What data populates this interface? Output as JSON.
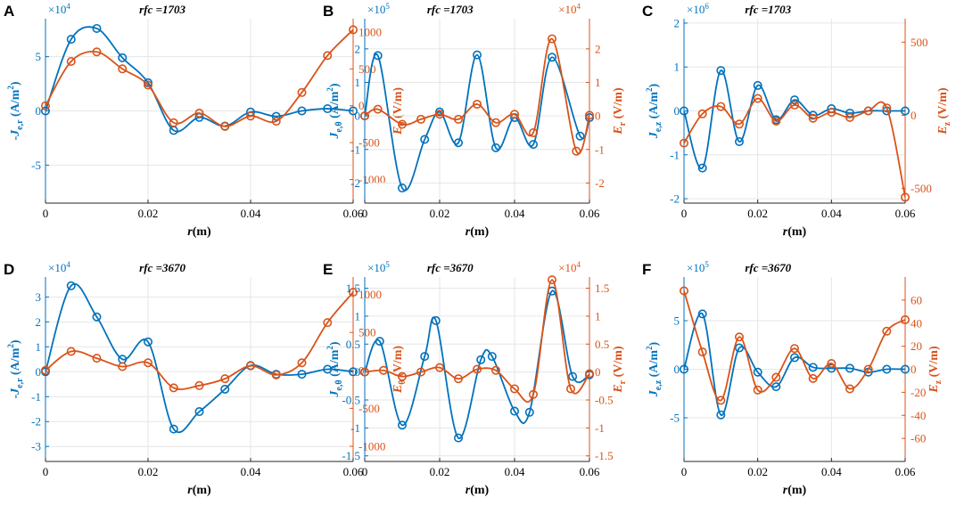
{
  "figure": {
    "colors": {
      "left": "#0072BD",
      "right": "#D95319",
      "grid": "#e6e6e6",
      "axis": "#262626"
    }
  },
  "chart_data": [
    {
      "panel": "A",
      "type": "line",
      "title": "rfc =1703",
      "xlabel": {
        "main": "r",
        "unit": "(m)"
      },
      "ylabel_left": {
        "prefix": "-",
        "main": "J",
        "sub": "e,r",
        "unit": " (A/m",
        "sup": "2",
        "close": ")"
      },
      "ylabel_right": {
        "main": "E",
        "sub": "θ",
        "unit": " (V/m)"
      },
      "xlim": [
        0,
        0.06
      ],
      "xticks": [
        0,
        0.02,
        0.04,
        0.06
      ],
      "xtick_labels": [
        "0",
        "0.02",
        "0.04",
        "0.06"
      ],
      "ylim_left": [
        -8.5,
        8.5
      ],
      "yticks_left": [
        -5,
        0,
        5
      ],
      "ytick_labels_left": [
        "-5",
        "0",
        "5"
      ],
      "multiplier_left": {
        "base": "×10",
        "exp": "4"
      },
      "ylim_right": [
        -1320,
        1180
      ],
      "yticks_right": [
        -1000,
        -500,
        0,
        500,
        1000
      ],
      "ytick_labels_right": [
        "-1000",
        "-500",
        "0",
        "500",
        "1000"
      ],
      "multiplier_right": null,
      "series_left": {
        "name": "-J_e,r",
        "x": [
          0,
          0.005,
          0.01,
          0.015,
          0.02,
          0.025,
          0.03,
          0.035,
          0.04,
          0.045,
          0.05,
          0.055,
          0.06
        ],
        "y": [
          0,
          6.6,
          7.6,
          4.9,
          2.6,
          -1.8,
          -0.6,
          -1.4,
          -0.1,
          -0.5,
          0,
          0.2,
          0
        ]
      },
      "series_right": {
        "name": "E_θ",
        "x": [
          0,
          0.005,
          0.01,
          0.015,
          0.02,
          0.025,
          0.03,
          0.035,
          0.04,
          0.045,
          0.05,
          0.055,
          0.06
        ],
        "y": [
          0,
          600,
          730,
          500,
          280,
          -230,
          -100,
          -280,
          -140,
          -210,
          180,
          680,
          1030
        ]
      }
    },
    {
      "panel": "B",
      "type": "line",
      "title": "rfc =1703",
      "xlabel": {
        "main": "r",
        "unit": "(m)"
      },
      "ylabel_left": {
        "prefix": "",
        "main": "J",
        "sub": "e,θ",
        "unit": " (A/m",
        "sup": "2",
        "close": ")"
      },
      "ylabel_right": {
        "main": "E",
        "sub": "r",
        "unit": " (V/m)"
      },
      "xlim": [
        0,
        0.06
      ],
      "xticks": [
        0,
        0.02,
        0.04,
        0.06
      ],
      "xtick_labels": [
        "0",
        "0.02",
        "0.04",
        "0.06"
      ],
      "ylim_left": [
        -2.6,
        2.9
      ],
      "yticks_left": [
        -2,
        -1,
        0,
        1,
        2
      ],
      "ytick_labels_left": [
        "-2",
        "-1",
        "0",
        "1",
        "2"
      ],
      "multiplier_left": {
        "base": "×10",
        "exp": "5"
      },
      "ylim_right": [
        -2.6,
        2.9
      ],
      "yticks_right": [
        -2,
        -1,
        0,
        1,
        2
      ],
      "ytick_labels_right": [
        "-2",
        "-1",
        "0",
        "1",
        "2"
      ],
      "multiplier_right": {
        "base": "×10",
        "exp": "4"
      },
      "series_left": {
        "name": "J_e,θ",
        "x": [
          0,
          0.0035,
          0.01,
          0.016,
          0.02,
          0.025,
          0.03,
          0.035,
          0.04,
          0.045,
          0.05,
          0.0575,
          0.06
        ],
        "y": [
          0,
          1.8,
          -2.15,
          -0.7,
          0.12,
          -0.8,
          1.82,
          -0.95,
          -0.05,
          -0.85,
          1.75,
          -0.6,
          -0.05
        ]
      },
      "series_right": {
        "name": "E_r",
        "x": [
          0,
          0.0035,
          0.01,
          0.015,
          0.02,
          0.025,
          0.03,
          0.035,
          0.04,
          0.045,
          0.05,
          0.0565,
          0.06
        ],
        "y": [
          0,
          0.2,
          -0.25,
          -0.1,
          0.05,
          -0.1,
          0.35,
          -0.2,
          0.05,
          -0.5,
          2.3,
          -1.05,
          0.02
        ]
      }
    },
    {
      "panel": "C",
      "type": "line",
      "title": "rfc =1703",
      "xlabel": {
        "main": "r",
        "unit": "(m)"
      },
      "ylabel_left": {
        "prefix": "",
        "main": "J",
        "sub": "e,z",
        "unit": " (A/m",
        "sup": "2",
        "close": ")"
      },
      "ylabel_right": {
        "main": "E",
        "sub": "z",
        "unit": " (V/m)"
      },
      "xlim": [
        0,
        0.06
      ],
      "xticks": [
        0,
        0.02,
        0.04,
        0.06
      ],
      "xtick_labels": [
        "0",
        "0.02",
        "0.04",
        "0.06"
      ],
      "ylim_left": [
        -2.1,
        2.1
      ],
      "yticks_left": [
        -2,
        -1,
        0,
        1,
        2
      ],
      "ytick_labels_left": [
        "-2",
        "-1",
        "0",
        "1",
        "2"
      ],
      "multiplier_left": {
        "base": "×10",
        "exp": "6"
      },
      "ylim_right": [
        -600,
        660
      ],
      "yticks_right": [
        -500,
        0,
        500
      ],
      "ytick_labels_right": [
        "-500",
        "0",
        "500"
      ],
      "multiplier_right": null,
      "series_left": {
        "name": "J_e,z",
        "x": [
          0,
          0.005,
          0.01,
          0.015,
          0.02,
          0.025,
          0.03,
          0.035,
          0.04,
          0.045,
          0.05,
          0.055,
          0.06
        ],
        "y": [
          0,
          -1.3,
          0.92,
          -0.7,
          0.58,
          -0.2,
          0.25,
          -0.1,
          0.05,
          -0.05,
          0,
          0,
          0
        ]
      },
      "series_right": {
        "name": "E_z",
        "x": [
          0,
          0.005,
          0.01,
          0.015,
          0.02,
          0.025,
          0.03,
          0.035,
          0.04,
          0.045,
          0.05,
          0.055,
          0.06
        ],
        "y": [
          -190,
          10,
          60,
          -60,
          115,
          -40,
          70,
          -20,
          20,
          -15,
          30,
          50,
          -560
        ]
      }
    },
    {
      "panel": "D",
      "type": "line",
      "title": "rfc =3670",
      "xlabel": {
        "main": "r",
        "unit": "(m)"
      },
      "ylabel_left": {
        "prefix": "-",
        "main": "J",
        "sub": "e,r",
        "unit": " (A/m",
        "sup": "2",
        "close": ")"
      },
      "ylabel_right": {
        "main": "E",
        "sub": "θ",
        "unit": " (V/m)"
      },
      "xlim": [
        0,
        0.06
      ],
      "xticks": [
        0,
        0.02,
        0.04,
        0.06
      ],
      "xtick_labels": [
        "0",
        "0.02",
        "0.04",
        "0.06"
      ],
      "ylim_left": [
        -3.6,
        3.8
      ],
      "yticks_left": [
        -3,
        -2,
        -1,
        0,
        1,
        2,
        3
      ],
      "ytick_labels_left": [
        "-3",
        "-2",
        "-1",
        "0",
        "1",
        "2",
        "3"
      ],
      "multiplier_left": {
        "base": "×10",
        "exp": "4"
      },
      "ylim_right": [
        -1200,
        1230
      ],
      "yticks_right": [
        -1000,
        -500,
        0,
        500,
        1000
      ],
      "ytick_labels_right": [
        "-1000",
        "-500",
        "0",
        "500",
        "1000"
      ],
      "multiplier_right": null,
      "series_left": {
        "name": "-J_e,r",
        "x": [
          0,
          0.005,
          0.01,
          0.015,
          0.02,
          0.025,
          0.03,
          0.035,
          0.04,
          0.045,
          0.05,
          0.055,
          0.06
        ],
        "y": [
          0,
          3.45,
          2.2,
          0.5,
          1.2,
          -2.3,
          -1.6,
          -0.7,
          0.25,
          -0.1,
          -0.1,
          0.1,
          0
        ]
      },
      "series_right": {
        "name": "E_θ",
        "x": [
          0,
          0.005,
          0.01,
          0.015,
          0.02,
          0.025,
          0.03,
          0.035,
          0.04,
          0.045,
          0.05,
          0.055,
          0.06
        ],
        "y": [
          0,
          250,
          160,
          50,
          100,
          -230,
          -200,
          -110,
          60,
          -60,
          100,
          630,
          1030
        ]
      }
    },
    {
      "panel": "E",
      "type": "line",
      "title": "rfc =3670",
      "xlabel": {
        "main": "r",
        "unit": "(m)"
      },
      "ylabel_left": {
        "prefix": "",
        "main": "J",
        "sub": "e,θ",
        "unit": " (A/m",
        "sup": "2",
        "close": ")"
      },
      "ylabel_right": {
        "main": "E",
        "sub": "r",
        "unit": " (V/m)"
      },
      "xlim": [
        0,
        0.06
      ],
      "xticks": [
        0,
        0.02,
        0.04,
        0.06
      ],
      "xtick_labels": [
        "0",
        "0.02",
        "0.04",
        "0.06"
      ],
      "ylim_left": [
        -1.6,
        1.7
      ],
      "yticks_left": [
        -1.5,
        -1,
        -0.5,
        0,
        0.5,
        1,
        1.5
      ],
      "ytick_labels_left": [
        "-1.5",
        "-1",
        "-0.5",
        "0",
        "0.5",
        "1",
        "1.5"
      ],
      "multiplier_left": {
        "base": "×10",
        "exp": "5"
      },
      "ylim_right": [
        -1.6,
        1.7
      ],
      "yticks_right": [
        -1.5,
        -1,
        -0.5,
        0,
        0.5,
        1,
        1.5
      ],
      "ytick_labels_right": [
        "-1.5",
        "-1",
        "-0.5",
        "0",
        "0.5",
        "1",
        "1.5"
      ],
      "multiplier_right": {
        "base": "×10",
        "exp": "4"
      },
      "series_left": {
        "name": "J_e,θ",
        "x": [
          0,
          0.004,
          0.01,
          0.016,
          0.019,
          0.025,
          0.031,
          0.034,
          0.04,
          0.044,
          0.05,
          0.0555,
          0.06
        ],
        "y": [
          0,
          0.55,
          -0.95,
          0.28,
          0.92,
          -1.18,
          0.22,
          0.28,
          -0.7,
          -0.72,
          1.45,
          -0.08,
          -0.05
        ]
      },
      "series_right": {
        "name": "E_r",
        "x": [
          0,
          0.005,
          0.01,
          0.015,
          0.02,
          0.025,
          0.03,
          0.035,
          0.04,
          0.045,
          0.05,
          0.055,
          0.06
        ],
        "y": [
          0,
          0.03,
          -0.08,
          0.0,
          0.08,
          -0.12,
          0.05,
          0.03,
          -0.3,
          -0.4,
          1.65,
          -0.3,
          -0.03
        ]
      }
    },
    {
      "panel": "F",
      "type": "line",
      "title": "rfc =3670",
      "xlabel": {
        "main": "r",
        "unit": "(m)"
      },
      "ylabel_left": {
        "prefix": "",
        "main": "J",
        "sub": "e,z",
        "unit": " (A/m",
        "sup": "2",
        "close": ")"
      },
      "ylabel_right": {
        "main": "E",
        "sub": "z",
        "unit": " (V/m)"
      },
      "xlim": [
        0,
        0.06
      ],
      "xticks": [
        0,
        0.02,
        0.04,
        0.06
      ],
      "xtick_labels": [
        "0",
        "0.02",
        "0.04",
        "0.06"
      ],
      "ylim_left": [
        -9.5,
        9.5
      ],
      "yticks_left": [
        -5,
        0,
        5
      ],
      "ytick_labels_left": [
        "-5",
        "0",
        "5"
      ],
      "multiplier_left": {
        "base": "×10",
        "exp": "5"
      },
      "ylim_right": [
        -80,
        80
      ],
      "yticks_right": [
        -60,
        -40,
        -20,
        0,
        20,
        40,
        60
      ],
      "ytick_labels_right": [
        "-60",
        "-40",
        "-20",
        "0",
        "20",
        "40",
        "60"
      ],
      "multiplier_right": null,
      "series_left": {
        "name": "J_e,z",
        "x": [
          0,
          0.005,
          0.01,
          0.015,
          0.02,
          0.025,
          0.03,
          0.035,
          0.04,
          0.045,
          0.05,
          0.055,
          0.06
        ],
        "y": [
          0,
          5.7,
          -4.7,
          2.2,
          -0.3,
          -1.8,
          1.2,
          0.2,
          0.1,
          0.1,
          -0.3,
          0,
          0
        ]
      },
      "series_right": {
        "name": "E_z",
        "x": [
          0,
          0.005,
          0.01,
          0.015,
          0.02,
          0.025,
          0.03,
          0.035,
          0.04,
          0.045,
          0.05,
          0.055,
          0.06
        ],
        "y": [
          68,
          15,
          -27,
          28,
          -18,
          -7,
          18,
          -8,
          5,
          -17,
          0,
          33,
          43
        ]
      }
    }
  ]
}
